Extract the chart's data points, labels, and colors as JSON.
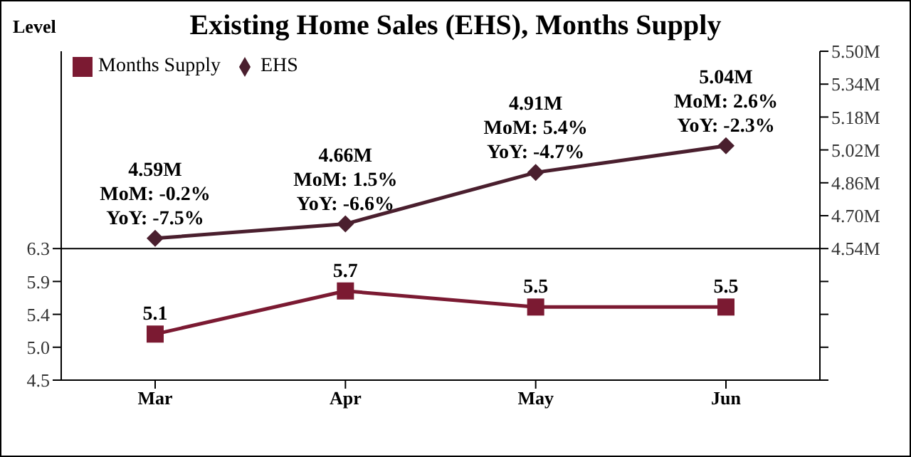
{
  "chart_data": {
    "type": "line",
    "title": "Existing Home Sales (EHS), Months Supply",
    "ylabel": "Level",
    "categories": [
      "Mar",
      "Apr",
      "May",
      "Jun"
    ],
    "series": [
      {
        "name": "Months Supply",
        "color": "#7b1a32",
        "marker": "square",
        "values": [
          5.13,
          5.72,
          5.5,
          5.5
        ],
        "value_labels": [
          "5.1",
          "5.7",
          "5.5",
          "5.5"
        ]
      },
      {
        "name": "EHS",
        "color": "#4a1f2e",
        "marker": "diamond",
        "axis": "y2",
        "values": [
          4.59,
          4.66,
          4.91,
          5.04
        ],
        "value_labels": [
          "4.59M",
          "4.66M",
          "4.91M",
          "5.04M"
        ]
      }
    ],
    "annotations": [
      "MoM: -0.2%\nYoY: -7.5%",
      "MoM: 1.5%\nYoY: -6.6%",
      "MoM: 5.4%\nYoY: -4.7%",
      "MoM: 2.6%\nYoY: -2.3%"
    ],
    "ylim": [
      4.5,
      9.0
    ],
    "yticks": [
      4.5,
      {
        "value": 4.95,
        "label": "5.0"
      },
      5.4,
      {
        "value": 5.85,
        "label": "5.9"
      },
      6.3
    ],
    "y2lim": [
      3.9,
      5.5
    ],
    "y2ticks": [
      {
        "value": 3.9,
        "label": null
      },
      {
        "value": 4.06,
        "label": null
      },
      {
        "value": 4.22,
        "label": null
      },
      {
        "value": 4.38,
        "label": null
      },
      {
        "value": 4.54,
        "label": "4.54M"
      },
      {
        "value": 4.7,
        "label": "4.70M"
      },
      {
        "value": 4.86,
        "label": "4.86M"
      },
      {
        "value": 5.02,
        "label": "5.02M"
      },
      {
        "value": 5.18,
        "label": "5.18M"
      },
      {
        "value": 5.34,
        "label": "5.34M"
      },
      {
        "value": 5.5,
        "label": "5.50M"
      }
    ],
    "ref_lines": [
      {
        "axis": "y",
        "value": 6.3,
        "color": "#000000"
      }
    ],
    "legend": "top left",
    "grid": false
  }
}
